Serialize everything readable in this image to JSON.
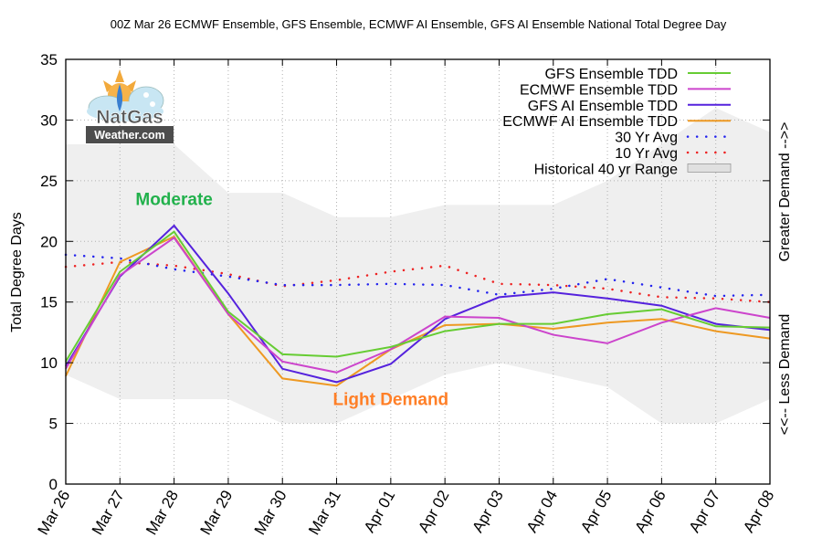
{
  "chart_data": {
    "type": "line",
    "title": "00Z Mar 26 ECMWF Ensemble, GFS Ensemble, ECMWF AI Ensemble, GFS AI Ensemble National Total Degree Day",
    "xlabel": "",
    "ylabel": "Total Degree Days",
    "y2label_top": "Greater Demand -->>",
    "y2label_bottom": "<<-- Less Demand",
    "ylim": [
      0,
      35
    ],
    "yticks": [
      "0",
      "5",
      "10",
      "15",
      "20",
      "25",
      "30",
      "35"
    ],
    "grid": true,
    "legend_position": "top-right",
    "categories": [
      "Mar 26",
      "Mar 27",
      "Mar 28",
      "Mar 29",
      "Mar 30",
      "Mar 31",
      "Apr 01",
      "Apr 02",
      "Apr 03",
      "Apr 04",
      "Apr 05",
      "Apr 06",
      "Apr 07",
      "Apr 08"
    ],
    "range": {
      "name": "Historical 40 yr Range",
      "color": "#efefef",
      "upper": [
        28,
        28,
        28,
        24,
        24,
        22,
        22,
        23,
        23,
        23,
        25,
        28,
        31,
        29
      ],
      "lower": [
        9,
        7,
        7,
        7,
        5,
        5,
        7,
        9,
        10,
        9,
        8,
        5,
        5,
        7
      ]
    },
    "series": [
      {
        "name": "GFS Ensemble TDD",
        "color": "#66cc33",
        "style": "solid",
        "values": [
          10.1,
          17.5,
          20.8,
          14.2,
          10.7,
          10.5,
          11.3,
          12.6,
          13.2,
          13.2,
          14.0,
          14.4,
          13.0,
          12.9
        ]
      },
      {
        "name": "ECMWF Ensemble TDD",
        "color": "#cc44cc",
        "style": "solid",
        "values": [
          9.5,
          17.2,
          20.3,
          14.0,
          10.1,
          9.2,
          11.1,
          13.8,
          13.7,
          12.3,
          11.6,
          13.3,
          14.5,
          13.7
        ]
      },
      {
        "name": "GFS AI Ensemble TDD",
        "color": "#5522dd",
        "style": "solid",
        "values": [
          9.7,
          17.1,
          21.3,
          15.7,
          9.5,
          8.4,
          9.9,
          13.6,
          15.4,
          15.8,
          15.3,
          14.7,
          13.2,
          12.7
        ]
      },
      {
        "name": "ECMWF AI Ensemble TDD",
        "color": "#ee9922",
        "style": "solid",
        "values": [
          8.9,
          18.3,
          20.4,
          14.0,
          8.7,
          8.1,
          11.1,
          13.1,
          13.2,
          12.8,
          13.3,
          13.6,
          12.6,
          12.0
        ]
      },
      {
        "name": "30 Yr Avg",
        "color": "#2222ee",
        "style": "dotted",
        "values": [
          18.9,
          18.6,
          17.7,
          17.1,
          16.4,
          16.4,
          16.5,
          16.4,
          15.6,
          16.1,
          16.9,
          16.2,
          15.5,
          15.6
        ]
      },
      {
        "name": "10 Yr Avg",
        "color": "#ee2222",
        "style": "dotted",
        "values": [
          17.9,
          18.3,
          18.0,
          17.3,
          16.3,
          16.8,
          17.5,
          18.0,
          16.5,
          16.4,
          16.1,
          15.4,
          15.3,
          15.0
        ]
      }
    ],
    "annotations": [
      {
        "text": "Moderate",
        "color": "#22b14c",
        "at": {
          "category": "Mar 28",
          "value": 23
        }
      },
      {
        "text": "Light Demand",
        "color": "#ff7f27",
        "at": {
          "category": "Apr 01",
          "value": 6.5
        }
      }
    ]
  },
  "logo": {
    "line1": "NatGas",
    "line2": "Weather.com"
  }
}
